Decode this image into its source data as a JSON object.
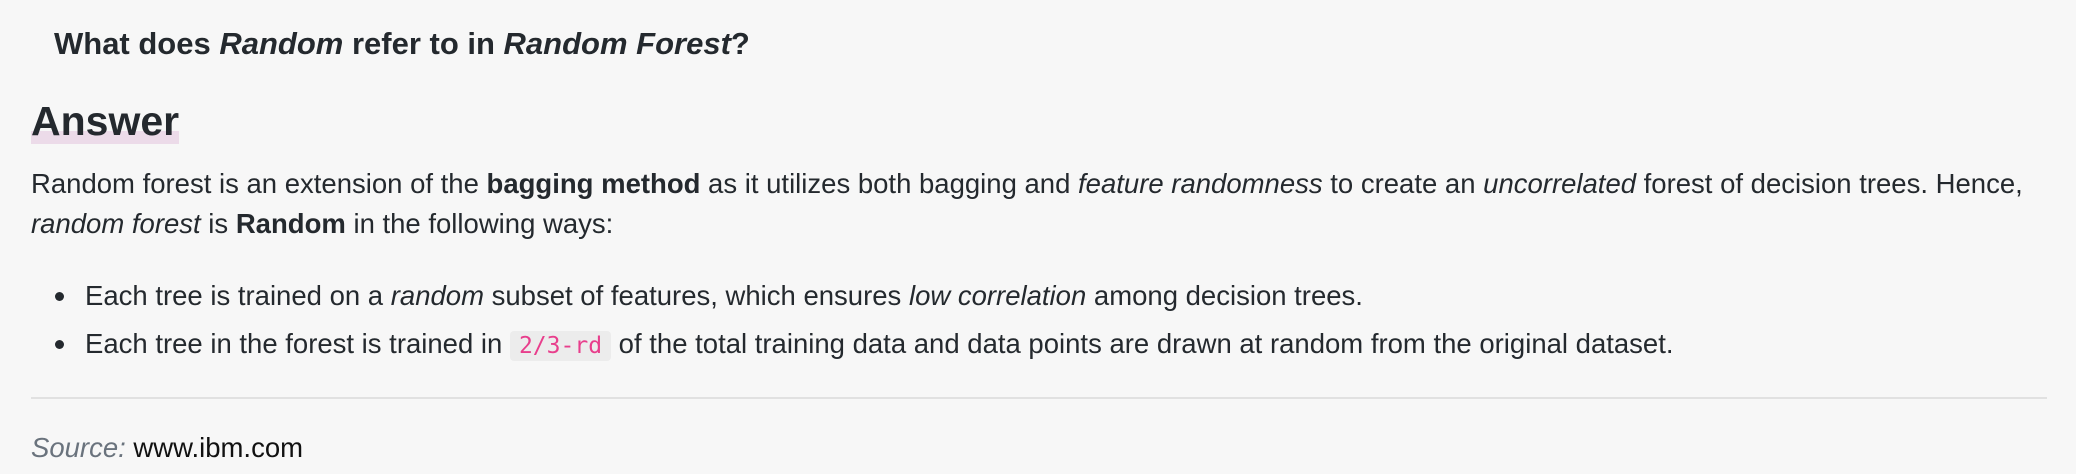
{
  "question": {
    "part1": "What does ",
    "em1": "Random",
    "part2": " refer to in ",
    "em2": "Random Forest",
    "part3": "?"
  },
  "answer_heading": "Answer",
  "paragraph": {
    "t1": "Random forest is an extension of the ",
    "b1": "bagging method",
    "t2": " as it utilizes both bagging and ",
    "i1": "feature randomness",
    "t3": " to create an ",
    "i2": "uncorrelated",
    "t4": " forest of decision trees. Hence, ",
    "i3": "random forest",
    "t5": " is ",
    "b2": "Random",
    "t6": " in the following ways:"
  },
  "bullets": [
    {
      "t1": "Each tree is trained on a ",
      "i1": "random",
      "t2": " subset of features, which ensures ",
      "i2": "low correlation",
      "t3": " among decision trees."
    },
    {
      "t1": "Each tree in the forest is trained in ",
      "code": "2/3-rd",
      "t2": " of the total training data and data points are drawn at random from the original dataset."
    }
  ],
  "source": {
    "label": "Source:",
    "value": "www.ibm.com"
  }
}
